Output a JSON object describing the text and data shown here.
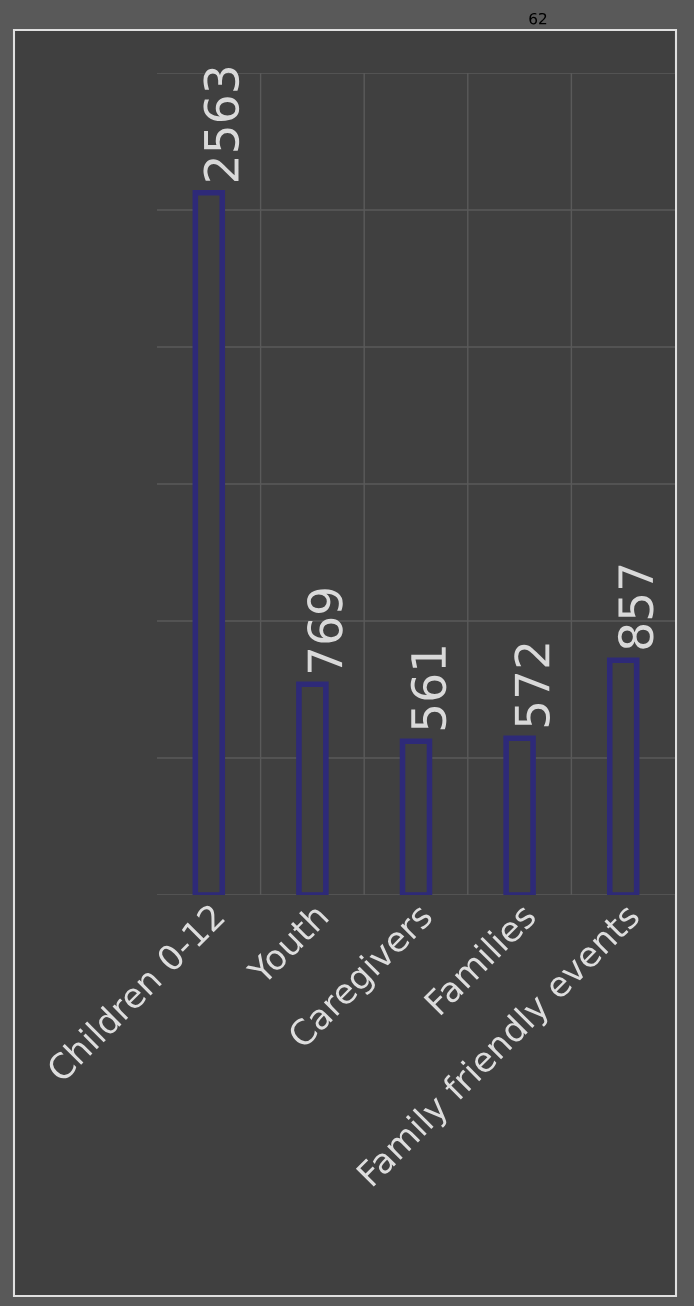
{
  "chart_data": {
    "type": "bar",
    "categories": [
      "Children 0-12",
      "Youth",
      "Caregivers",
      "Families",
      "Family friendly events"
    ],
    "values": [
      2563,
      769,
      561,
      572,
      857
    ],
    "color": "#2e2a78",
    "data_labels": true,
    "ylim": [
      0,
      3000
    ],
    "yticks": [
      {
        "value": 0,
        "label": null
      },
      {
        "value": 500,
        "label": null
      },
      {
        "value": 1000,
        "label": null
      },
      {
        "value": 1500,
        "label": null
      },
      {
        "value": 2000,
        "label": null
      },
      {
        "value": 2500,
        "label": null
      },
      {
        "value": 3000,
        "label": null
      }
    ],
    "grid": true,
    "annotations": [
      "62"
    ]
  }
}
